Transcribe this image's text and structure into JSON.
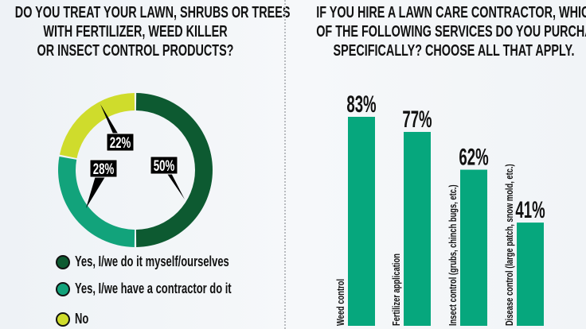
{
  "chart_data": [
    {
      "type": "pie",
      "title": "DO YOU TREAT YOUR LAWN, SHRUBS OR TREES WITH FERTILIZER, WEED KILLER OR INSECT CONTROL PRODUCTS?",
      "title_lines": [
        "DO YOU TREAT YOUR LAWN, SHRUBS OR TREES",
        "WITH FERTILIZER, WEED KILLER",
        "OR INSECT CONTROL PRODUCTS?"
      ],
      "donut": true,
      "slices": [
        {
          "name": "Yes, I/we do it myself/ourselves",
          "value": 50,
          "label": "50%",
          "color": "#0d5a31"
        },
        {
          "name": "Yes, I/we have a contractor do it",
          "value": 28,
          "label": "28%",
          "color": "#12a37b"
        },
        {
          "name": "No",
          "value": 22,
          "label": "22%",
          "color": "#cfdc2c"
        }
      ],
      "legend": "bottom-left"
    },
    {
      "type": "bar",
      "title": "IF YOU HIRE A LAWN CARE CONTRACTOR, WHICH OF THE FOLLOWING SERVICES DO YOU PURCHASE SPECIFICALLY? CHOOSE ALL THAT APPLY.",
      "title_lines": [
        "IF YOU HIRE A LAWN CARE CONTRACTOR, WHICH",
        "OF THE FOLLOWING SERVICES DO YOU PURCHASE",
        "SPECIFICALLY? CHOOSE ALL THAT APPLY."
      ],
      "categories": [
        "Weed control",
        "Fertilizer application",
        "Insect control (grubs, chinch bugs, etc.)",
        "Disease control (large patch, snow mold, etc.)"
      ],
      "values": [
        83,
        77,
        62,
        41
      ],
      "labels": [
        "83%",
        "77%",
        "62%",
        "41%"
      ],
      "color": "#06a77d",
      "ylim": [
        0,
        100
      ]
    }
  ]
}
